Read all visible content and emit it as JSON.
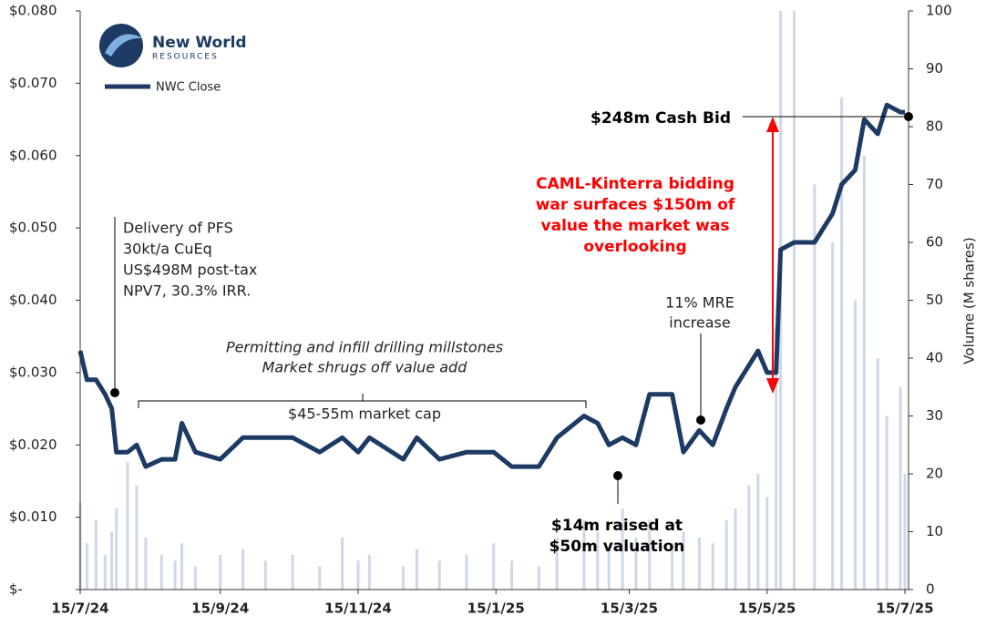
{
  "chart_data": {
    "type": "line",
    "logo": {
      "name": "New World",
      "sub": "RESOURCES"
    },
    "x": [
      "15/7/24",
      "18/7/24",
      "22/7/24",
      "26/7/24",
      "29/7/24",
      "31/7/24",
      "5/8/24",
      "9/8/24",
      "13/8/24",
      "20/8/24",
      "26/8/24",
      "29/8/24",
      "4/9/24",
      "15/9/24",
      "25/9/24",
      "5/10/24",
      "17/10/24",
      "29/10/24",
      "8/11/24",
      "15/11/24",
      "20/11/24",
      "5/12/24",
      "11/12/24",
      "21/12/24",
      "2/1/25",
      "14/1/25",
      "22/1/25",
      "3/2/25",
      "11/2/25",
      "23/2/25",
      "1/3/25",
      "6/3/25",
      "12/3/25",
      "18/3/25",
      "24/3/25",
      "3/4/25",
      "8/4/25",
      "15/4/25",
      "21/4/25",
      "27/4/25",
      "1/5/25",
      "7/5/25",
      "11/5/25",
      "15/5/25",
      "19/5/25",
      "21/5/25",
      "27/5/25",
      "5/6/25",
      "13/6/25",
      "17/6/25",
      "23/6/25",
      "27/6/25",
      "3/7/25",
      "7/7/25",
      "13/7/25",
      "15/7/25"
    ],
    "series": [
      {
        "name": "NWC Close",
        "color": "#1c3a63",
        "values": [
          0.033,
          0.029,
          0.029,
          0.027,
          0.025,
          0.019,
          0.019,
          0.02,
          0.017,
          0.018,
          0.018,
          0.023,
          0.019,
          0.018,
          0.021,
          0.021,
          0.021,
          0.019,
          0.021,
          0.019,
          0.021,
          0.018,
          0.021,
          0.018,
          0.019,
          0.019,
          0.017,
          0.017,
          0.021,
          0.024,
          0.023,
          0.02,
          0.021,
          0.02,
          0.027,
          0.027,
          0.019,
          0.022,
          0.02,
          0.025,
          0.028,
          0.031,
          0.033,
          0.03,
          0.03,
          0.047,
          0.048,
          0.048,
          0.052,
          0.056,
          0.058,
          0.065,
          0.063,
          0.067,
          0.066,
          0.066
        ]
      },
      {
        "color": "#cdd8e8",
        "axis": "y2",
        "values": [
          15,
          8,
          12,
          6,
          10,
          14,
          22,
          18,
          9,
          6,
          5,
          8,
          4,
          6,
          7,
          5,
          6,
          4,
          9,
          5,
          6,
          4,
          7,
          5,
          6,
          8,
          5,
          4,
          9,
          12,
          10,
          7,
          14,
          9,
          12,
          8,
          10,
          9,
          8,
          12,
          14,
          18,
          20,
          16,
          45,
          100,
          100,
          70,
          60,
          85,
          50,
          75,
          40,
          30,
          35,
          20
        ]
      }
    ],
    "xlim": [
      "15/7/24",
      "15/7/25"
    ],
    "xticks": [
      "15/7/24",
      "15/9/24",
      "15/11/24",
      "15/1/25",
      "15/3/25",
      "15/5/25",
      "15/7/25"
    ],
    "ylim": [
      0,
      0.08
    ],
    "yticks": [
      {
        "value": 0,
        "label": "$-"
      },
      {
        "value": 0.01,
        "label": "$0.010"
      },
      {
        "value": 0.02,
        "label": "$0.020"
      },
      {
        "value": 0.03,
        "label": "$0.030"
      },
      {
        "value": 0.04,
        "label": "$0.040"
      },
      {
        "value": 0.05,
        "label": "$0.050"
      },
      {
        "value": 0.06,
        "label": "$0.060"
      },
      {
        "value": 0.07,
        "label": "$0.070"
      },
      {
        "value": 0.08,
        "label": "$0.080"
      }
    ],
    "y2lim": [
      0,
      100
    ],
    "y2ticks": [
      0,
      10,
      20,
      30,
      40,
      50,
      60,
      70,
      80,
      90,
      100
    ],
    "y2label": "Volume (M shares)",
    "annotations": [
      {
        "lines": [
          "Delivery of PFS",
          "30kt/a CuEq",
          "US$498M post-tax",
          "NPV7, 30.3% IRR."
        ]
      },
      {
        "lines": [
          "Permitting and infill drilling millstones",
          "Market shrugs off value add"
        ]
      },
      {
        "lines": [
          "$45-55m market cap"
        ]
      },
      {
        "lines": [
          "11% MRE",
          "increase"
        ]
      },
      {
        "lines": [
          "$14m raised at",
          "$50m valuation"
        ]
      },
      {
        "lines": [
          "$248m Cash Bid"
        ]
      },
      {
        "lines": [
          "CAML-Kinterra bidding",
          "war surfaces $150m of",
          "value the market was",
          "overlooking"
        ],
        "color": "#ff0000"
      }
    ]
  }
}
